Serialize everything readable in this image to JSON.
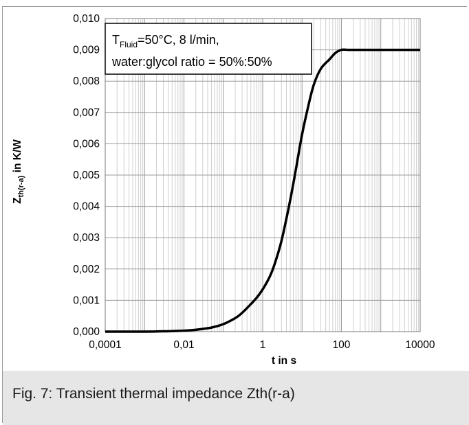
{
  "chart_data": {
    "type": "line",
    "x_scale": "log",
    "xlabel": "t in s",
    "ylabel_main": "Z",
    "ylabel_sub": "th(r-a)",
    "ylabel_rest": " in K/W",
    "xlim": [
      0.0001,
      10000
    ],
    "ylim": [
      0,
      0.01
    ],
    "x_ticks": [
      "0,0001",
      "0,01",
      "1",
      "100",
      "10000"
    ],
    "y_ticks": [
      "0,000",
      "0,001",
      "0,002",
      "0,003",
      "0,004",
      "0,005",
      "0,006",
      "0,007",
      "0,008",
      "0,009",
      "0,010"
    ],
    "grid": true,
    "annotation": {
      "line1_T": "T",
      "line1_sub": "Fluid",
      "line1_rest": "=50°C, 8 l/min,",
      "line2": "water:glycol ratio = 50%:50%"
    },
    "series": [
      {
        "color": "#000000",
        "x": [
          0.0001,
          0.001,
          0.003,
          0.01,
          0.02,
          0.05,
          0.1,
          0.2,
          0.3,
          0.5,
          0.7,
          1,
          1.5,
          2,
          3,
          5,
          7,
          10,
          15,
          20,
          30,
          50,
          70,
          100,
          150,
          200,
          1000,
          10000
        ],
        "y": [
          0.0,
          0.0,
          1e-05,
          3e-05,
          6e-05,
          0.00013,
          0.00024,
          0.00043,
          0.0006,
          0.00088,
          0.00108,
          0.00135,
          0.00175,
          0.00215,
          0.0029,
          0.0042,
          0.0052,
          0.0063,
          0.0073,
          0.0079,
          0.0084,
          0.0087,
          0.0089,
          0.009,
          0.009,
          0.009,
          0.009,
          0.009
        ]
      }
    ]
  },
  "caption": "Fig. 7: Transient thermal impedance Zth(r-a)"
}
